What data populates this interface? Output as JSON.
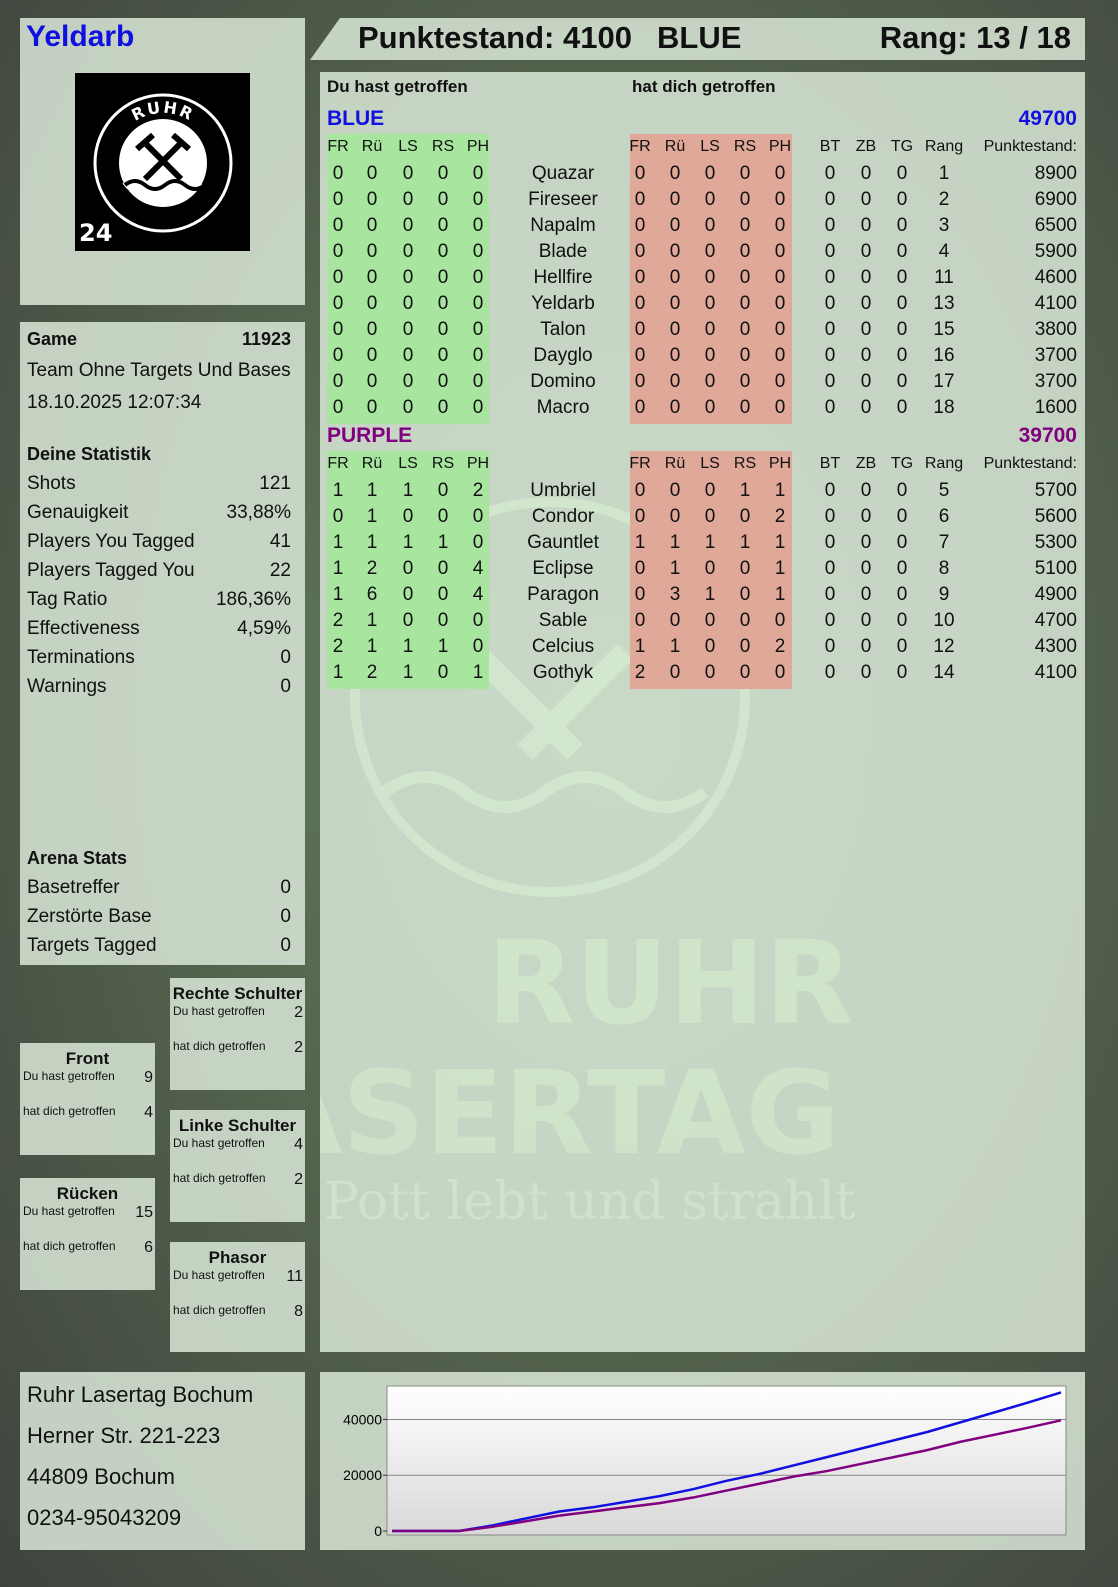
{
  "player": {
    "name": "Yeldarb",
    "logo_text": {
      "top": "RUHR",
      "bottom": "LASERTAG",
      "badge": "24"
    }
  },
  "header": {
    "score": "Punktestand: 4100",
    "team": "BLUE",
    "rank": "Rang: 13 / 18"
  },
  "main": {
    "you_hit": "Du hast getroffen",
    "hit_you": "hat dich getroffen",
    "columns_left": [
      "FR",
      "Rü",
      "LS",
      "RS",
      "PH"
    ],
    "columns_right": [
      "FR",
      "Rü",
      "LS",
      "RS",
      "PH"
    ],
    "columns_extra": [
      "BT",
      "ZB",
      "TG",
      "Rang",
      "Punktestand:"
    ],
    "teams": [
      {
        "name": "BLUE",
        "total": "49700",
        "color": "#1010e0",
        "rows": [
          [
            "0",
            "0",
            "0",
            "0",
            "0",
            "Quazar",
            "0",
            "0",
            "0",
            "0",
            "0",
            "0",
            "0",
            "0",
            "1",
            "8900"
          ],
          [
            "0",
            "0",
            "0",
            "0",
            "0",
            "Fireseer",
            "0",
            "0",
            "0",
            "0",
            "0",
            "0",
            "0",
            "0",
            "2",
            "6900"
          ],
          [
            "0",
            "0",
            "0",
            "0",
            "0",
            "Napalm",
            "0",
            "0",
            "0",
            "0",
            "0",
            "0",
            "0",
            "0",
            "3",
            "6500"
          ],
          [
            "0",
            "0",
            "0",
            "0",
            "0",
            "Blade",
            "0",
            "0",
            "0",
            "0",
            "0",
            "0",
            "0",
            "0",
            "4",
            "5900"
          ],
          [
            "0",
            "0",
            "0",
            "0",
            "0",
            "Hellfire",
            "0",
            "0",
            "0",
            "0",
            "0",
            "0",
            "0",
            "0",
            "11",
            "4600"
          ],
          [
            "0",
            "0",
            "0",
            "0",
            "0",
            "Yeldarb",
            "0",
            "0",
            "0",
            "0",
            "0",
            "0",
            "0",
            "0",
            "13",
            "4100"
          ],
          [
            "0",
            "0",
            "0",
            "0",
            "0",
            "Talon",
            "0",
            "0",
            "0",
            "0",
            "0",
            "0",
            "0",
            "0",
            "15",
            "3800"
          ],
          [
            "0",
            "0",
            "0",
            "0",
            "0",
            "Dayglo",
            "0",
            "0",
            "0",
            "0",
            "0",
            "0",
            "0",
            "0",
            "16",
            "3700"
          ],
          [
            "0",
            "0",
            "0",
            "0",
            "0",
            "Domino",
            "0",
            "0",
            "0",
            "0",
            "0",
            "0",
            "0",
            "0",
            "17",
            "3700"
          ],
          [
            "0",
            "0",
            "0",
            "0",
            "0",
            "Macro",
            "0",
            "0",
            "0",
            "0",
            "0",
            "0",
            "0",
            "0",
            "18",
            "1600"
          ]
        ]
      },
      {
        "name": "PURPLE",
        "total": "39700",
        "color": "#800080",
        "rows": [
          [
            "1",
            "1",
            "1",
            "0",
            "2",
            "Umbriel",
            "0",
            "0",
            "0",
            "1",
            "1",
            "0",
            "0",
            "0",
            "5",
            "5700"
          ],
          [
            "0",
            "1",
            "0",
            "0",
            "0",
            "Condor",
            "0",
            "0",
            "0",
            "0",
            "2",
            "0",
            "0",
            "0",
            "6",
            "5600"
          ],
          [
            "1",
            "1",
            "1",
            "1",
            "0",
            "Gauntlet",
            "1",
            "1",
            "1",
            "1",
            "1",
            "0",
            "0",
            "0",
            "7",
            "5300"
          ],
          [
            "1",
            "2",
            "0",
            "0",
            "4",
            "Eclipse",
            "0",
            "1",
            "0",
            "0",
            "1",
            "0",
            "0",
            "0",
            "8",
            "5100"
          ],
          [
            "1",
            "6",
            "0",
            "0",
            "4",
            "Paragon",
            "0",
            "3",
            "1",
            "0",
            "1",
            "0",
            "0",
            "0",
            "9",
            "4900"
          ],
          [
            "2",
            "1",
            "0",
            "0",
            "0",
            "Sable",
            "0",
            "0",
            "0",
            "0",
            "0",
            "0",
            "0",
            "0",
            "10",
            "4700"
          ],
          [
            "2",
            "1",
            "1",
            "1",
            "0",
            "Celcius",
            "1",
            "1",
            "0",
            "0",
            "2",
            "0",
            "0",
            "0",
            "12",
            "4300"
          ],
          [
            "1",
            "2",
            "1",
            "0",
            "1",
            "Gothyk",
            "2",
            "0",
            "0",
            "0",
            "0",
            "0",
            "0",
            "0",
            "14",
            "4100"
          ]
        ]
      }
    ]
  },
  "game": {
    "label": "Game",
    "id": "11923",
    "mode": "Team Ohne Targets Und Bases",
    "datetime": "18.10.2025 12:07:34"
  },
  "stats": {
    "title": "Deine Statistik",
    "items": [
      {
        "label": "Shots",
        "value": "121"
      },
      {
        "label": "Genauigkeit",
        "value": "33,88%"
      },
      {
        "label": "Players You Tagged",
        "value": "41"
      },
      {
        "label": "Players Tagged You",
        "value": "22"
      },
      {
        "label": "Tag Ratio",
        "value": "186,36%"
      },
      {
        "label": "Effectiveness",
        "value": "4,59%"
      },
      {
        "label": "Terminations",
        "value": "0"
      },
      {
        "label": "Warnings",
        "value": "0"
      }
    ]
  },
  "arena": {
    "title": "Arena Stats",
    "items": [
      {
        "label": "Basetreffer",
        "value": "0"
      },
      {
        "label": "Zerstörte Base",
        "value": "0"
      },
      {
        "label": "Targets Tagged",
        "value": "0"
      }
    ]
  },
  "hits": [
    {
      "title": "Rechte Schulter",
      "you_hit_label": "Du hast getroffen",
      "you_hit": "2",
      "hit_you_label": "hat dich getroffen",
      "hit_you": "2"
    },
    {
      "title": "Front",
      "you_hit_label": "Du hast getroffen",
      "you_hit": "9",
      "hit_you_label": "hat dich getroffen",
      "hit_you": "4"
    },
    {
      "title": "Linke Schulter",
      "you_hit_label": "Du hast getroffen",
      "you_hit": "4",
      "hit_you_label": "hat dich getroffen",
      "hit_you": "2"
    },
    {
      "title": "Rücken",
      "you_hit_label": "Du hast getroffen",
      "you_hit": "15",
      "hit_you_label": "hat dich getroffen",
      "hit_you": "6"
    },
    {
      "title": "Phasor",
      "you_hit_label": "Du hast getroffen",
      "you_hit": "11",
      "hit_you_label": "hat dich getroffen",
      "hit_you": "8"
    }
  ],
  "address": [
    "Ruhr Lasertag Bochum",
    "Herner Str. 221-223",
    "44809 Bochum",
    "0234-95043209"
  ],
  "watermark": {
    "line1": "RUHR",
    "line2": "LASERTAG",
    "slogan": "Der Pott lebt und strahlt"
  },
  "colors": {
    "blue": "#1010e0",
    "purple": "#800080",
    "you_hit_bg": "#a8e6a0",
    "hit_you_bg": "#e0a898"
  },
  "chart_data": {
    "type": "line",
    "ylim": [
      0,
      52000
    ],
    "yticks": [
      "0",
      "20000",
      "40000"
    ],
    "grid": true,
    "series": [
      {
        "color": "#1010e0",
        "values": [
          0,
          0,
          0,
          2000,
          4500,
          7000,
          8500,
          10500,
          12500,
          15000,
          18000,
          20500,
          23500,
          26500,
          29500,
          32500,
          35500,
          39000,
          42500,
          46000,
          49700
        ]
      },
      {
        "color": "#800080",
        "values": [
          0,
          0,
          0,
          1500,
          3500,
          5500,
          7000,
          8500,
          10000,
          12000,
          14500,
          17000,
          19500,
          21500,
          24000,
          26500,
          29000,
          32000,
          34500,
          37000,
          39700
        ]
      }
    ]
  }
}
